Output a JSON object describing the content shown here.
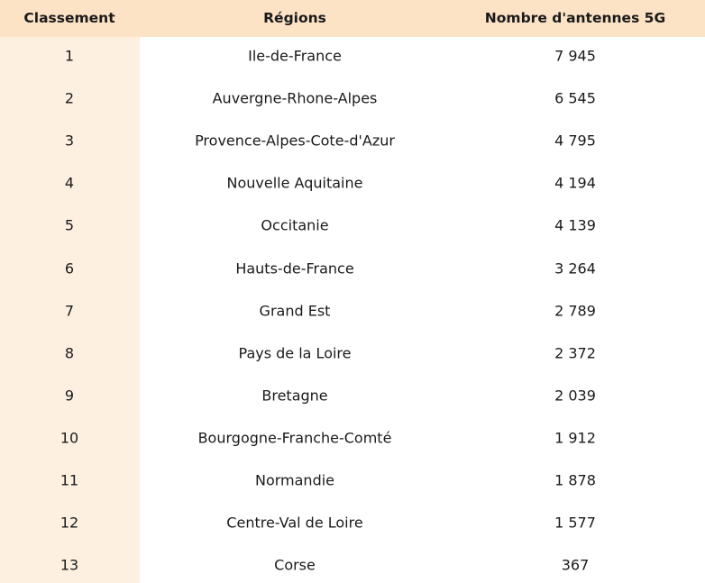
{
  "table": {
    "headers": [
      "Classement",
      "Régions",
      "Nombre d'antennes 5G"
    ],
    "rows": [
      [
        "1",
        "Ile-de-France",
        "7 945"
      ],
      [
        "2",
        "Auvergne-Rhone-Alpes",
        "6 545"
      ],
      [
        "3",
        "Provence-Alpes-Cote-d'Azur",
        "4 795"
      ],
      [
        "4",
        "Nouvelle Aquitaine",
        "4 194"
      ],
      [
        "5",
        "Occitanie",
        "4 139"
      ],
      [
        "6",
        "Hauts-de-France",
        "3 264"
      ],
      [
        "7",
        "Grand Est",
        "2 789"
      ],
      [
        "8",
        "Pays de la Loire",
        "2 372"
      ],
      [
        "9",
        "Bretagne",
        "2 039"
      ],
      [
        "10",
        "Bourgogne-Franche-Comté",
        "1 912"
      ],
      [
        "11",
        "Normandie",
        "1 878"
      ],
      [
        "12",
        "Centre-Val de Loire",
        "1 577"
      ],
      [
        "13",
        "Corse",
        "367"
      ]
    ]
  }
}
